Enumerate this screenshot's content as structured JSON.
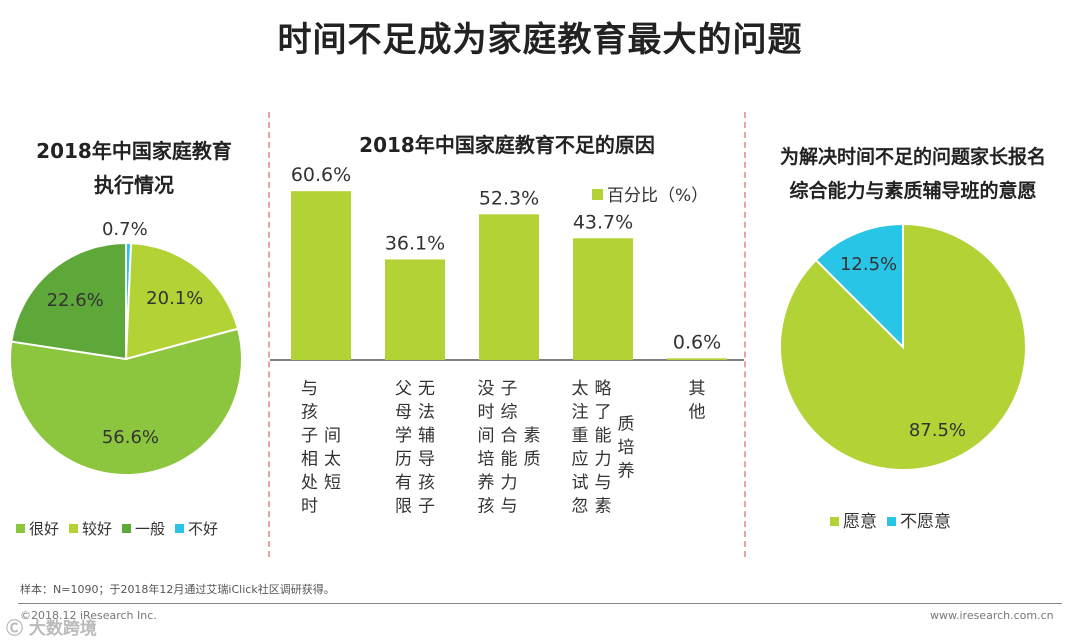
{
  "page": {
    "title": "时间不足成为家庭教育最大的问题",
    "sample_note": "样本：N=1090；于2018年12月通过艾瑞iClick社区调研获得。",
    "copyright": "©2018.12 iResearch Inc.",
    "website": "www.iresearch.com.cn",
    "watermark": "大数跨境"
  },
  "chart_data": [
    {
      "type": "pie",
      "title_line1": "2018年中国家庭教育",
      "title_line2": "执行情况",
      "start_angle_deg": 0,
      "slices": [
        {
          "name": "不好",
          "value": 0.7,
          "label": "0.7%",
          "color": "#29c5e6"
        },
        {
          "name": "较好",
          "value": 20.1,
          "label": "20.1%",
          "color": "#b2d235"
        },
        {
          "name": "很好",
          "value": 56.6,
          "label": "56.6%",
          "color": "#8cc63f"
        },
        {
          "name": "一般",
          "value": 22.6,
          "label": "22.6%",
          "color": "#5ea83a"
        }
      ],
      "legend": [
        {
          "name": "很好",
          "color": "#8cc63f"
        },
        {
          "name": "较好",
          "color": "#b2d235"
        },
        {
          "name": "一般",
          "color": "#5ea83a"
        },
        {
          "name": "不好",
          "color": "#29c5e6"
        }
      ]
    },
    {
      "type": "bar",
      "title": "2018年中国家庭教育不足的原因",
      "legend": "百分比（%）",
      "color": "#b2d235",
      "ylim": [
        0,
        70
      ],
      "categories": [
        {
          "columns": [
            [
              "与",
              "孩",
              "子",
              "相",
              "处",
              "时"
            ],
            [
              "间",
              "太",
              "短"
            ]
          ],
          "col_offsets": [
            0,
            2
          ]
        },
        {
          "columns": [
            [
              "父",
              "母",
              "学",
              "历",
              "有",
              "限"
            ],
            [
              "无",
              "法",
              "辅",
              "导",
              "孩",
              "子"
            ]
          ],
          "col_offsets": [
            0,
            0
          ]
        },
        {
          "columns": [
            [
              "没",
              "时",
              "间",
              "培",
              "养",
              "孩"
            ],
            [
              "子",
              "综",
              "合",
              "能",
              "力",
              "与"
            ],
            [
              "素",
              "质"
            ]
          ],
          "col_offsets": [
            0,
            0,
            2
          ]
        },
        {
          "columns": [
            [
              "太",
              "注",
              "重",
              "应",
              "试",
              "忽"
            ],
            [
              "略",
              "了",
              "能",
              "力",
              "与",
              "素"
            ],
            [
              "质",
              "培",
              "养"
            ]
          ],
          "col_offsets": [
            0,
            0,
            1.5
          ]
        },
        {
          "columns": [
            [
              "其",
              "他"
            ]
          ],
          "col_offsets": [
            0
          ]
        }
      ],
      "values": [
        60.6,
        36.1,
        52.3,
        43.7,
        0.6
      ],
      "labels": [
        "60.6%",
        "36.1%",
        "52.3%",
        "43.7%",
        "0.6%"
      ]
    },
    {
      "type": "pie",
      "title_line1": "为解决时间不足的问题家长报名",
      "title_line2": "综合能力与素质辅导班的意愿",
      "start_angle_deg": 0,
      "slices": [
        {
          "name": "愿意",
          "value": 87.5,
          "label": "87.5%",
          "color": "#b2d235"
        },
        {
          "name": "不愿意",
          "value": 12.5,
          "label": "12.5%",
          "color": "#29c5e6"
        }
      ],
      "legend": [
        {
          "name": "愿意",
          "color": "#b2d235"
        },
        {
          "name": "不愿意",
          "color": "#29c5e6"
        }
      ]
    }
  ]
}
